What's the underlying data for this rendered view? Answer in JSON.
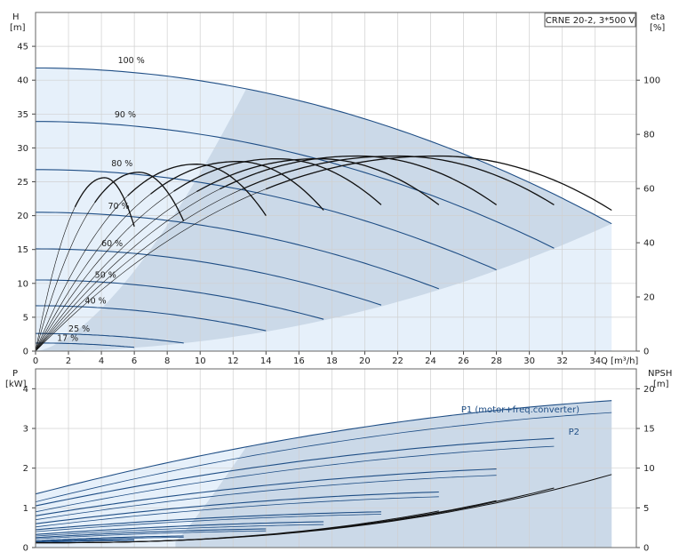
{
  "chart_data": [
    {
      "type": "line",
      "title": "CRNE 20-2, 3*500 V",
      "xlabel": "Q [m³/h]",
      "ylabel": "H",
      "ylabel_unit": "[m]",
      "y2label": "eta",
      "y2label_unit": "[%]",
      "xlim": [
        0,
        36.5
      ],
      "ylim": [
        0,
        50
      ],
      "y2lim": [
        0,
        125
      ],
      "xticks": [
        0,
        2,
        4,
        6,
        8,
        10,
        12,
        14,
        16,
        18,
        20,
        22,
        24,
        26,
        28,
        30,
        32,
        34
      ],
      "yticks": [
        0,
        5,
        10,
        15,
        20,
        25,
        30,
        35,
        40,
        45
      ],
      "y2ticks": [
        0,
        20,
        40,
        60,
        80,
        100
      ],
      "grid": true,
      "qh_curves": [
        {
          "label": "100 %",
          "h0": 41.8,
          "qmax": 35.0,
          "hend": 18.8,
          "label_q": 5.0,
          "label_h": 42.5
        },
        {
          "label": "90 %",
          "h0": 33.9,
          "qmax": 31.5,
          "hend": 15.2,
          "label_q": 4.8,
          "label_h": 34.5
        },
        {
          "label": "80 %",
          "h0": 26.8,
          "qmax": 28.0,
          "hend": 12.0,
          "label_q": 4.6,
          "label_h": 27.3
        },
        {
          "label": "70 %",
          "h0": 20.5,
          "qmax": 24.5,
          "hend": 9.2,
          "label_q": 4.4,
          "label_h": 21.0
        },
        {
          "label": "60 %",
          "h0": 15.1,
          "qmax": 21.0,
          "hend": 6.8,
          "label_q": 4.0,
          "label_h": 15.5
        },
        {
          "label": "50 %",
          "h0": 10.5,
          "qmax": 17.5,
          "hend": 4.7,
          "label_q": 3.6,
          "label_h": 10.8
        },
        {
          "label": "40 %",
          "h0": 6.7,
          "qmax": 14.0,
          "hend": 3.0,
          "label_q": 3.0,
          "label_h": 7.0
        },
        {
          "label": "25 %",
          "h0": 2.6,
          "qmax": 9.0,
          "hend": 1.2,
          "label_q": 2.0,
          "label_h": 2.9
        },
        {
          "label": "17 %",
          "h0": 1.2,
          "qmax": 6.0,
          "hend": 0.55,
          "label_q": 1.3,
          "label_h": 1.5
        }
      ],
      "eta_curves": [
        {
          "qmax": 35.0,
          "peak_q": 24.5,
          "peak": 72,
          "end": 52
        },
        {
          "qmax": 31.5,
          "peak_q": 22.0,
          "peak": 72,
          "end": 54
        },
        {
          "qmax": 28.0,
          "peak_q": 19.6,
          "peak": 72,
          "end": 54
        },
        {
          "qmax": 24.5,
          "peak_q": 17.2,
          "peak": 71,
          "end": 54
        },
        {
          "qmax": 21.0,
          "peak_q": 14.7,
          "peak": 71,
          "end": 54
        },
        {
          "qmax": 17.5,
          "peak_q": 12.3,
          "peak": 70,
          "end": 52
        },
        {
          "qmax": 14.0,
          "peak_q": 9.8,
          "peak": 69,
          "end": 50
        },
        {
          "qmax": 9.0,
          "peak_q": 6.3,
          "peak": 66,
          "end": 48
        },
        {
          "qmax": 6.0,
          "peak_q": 4.2,
          "peak": 64,
          "end": 46
        }
      ]
    },
    {
      "type": "line",
      "xlabel": "",
      "ylabel": "P",
      "ylabel_unit": "[kW]",
      "y2label": "NPSH",
      "y2label_unit": "[m]",
      "xlim": [
        0,
        36.5
      ],
      "ylim": [
        0,
        4.5
      ],
      "y2lim": [
        0,
        22.5
      ],
      "yticks": [
        0,
        1,
        2,
        3,
        4
      ],
      "y2ticks": [
        0,
        5,
        10,
        15,
        20
      ],
      "grid": true,
      "annotations": [
        "P1 (motor+freq.converter)",
        "P2"
      ],
      "power_curves": [
        {
          "qmax": 35.0,
          "p1_start": 1.35,
          "p1_end": 3.7,
          "p2_start": 1.15,
          "p2_end": 3.4
        },
        {
          "qmax": 31.5,
          "p1_start": 1.05,
          "p1_end": 2.75,
          "p2_start": 0.9,
          "p2_end": 2.55
        },
        {
          "qmax": 28.0,
          "p1_start": 0.8,
          "p1_end": 1.98,
          "p2_start": 0.7,
          "p2_end": 1.82
        },
        {
          "qmax": 24.5,
          "p1_start": 0.6,
          "p1_end": 1.4,
          "p2_start": 0.52,
          "p2_end": 1.28
        },
        {
          "qmax": 21.0,
          "p1_start": 0.45,
          "p1_end": 0.9,
          "p2_start": 0.4,
          "p2_end": 0.84
        },
        {
          "qmax": 17.5,
          "p1_start": 0.33,
          "p1_end": 0.65,
          "p2_start": 0.29,
          "p2_end": 0.58
        },
        {
          "qmax": 14.0,
          "p1_start": 0.25,
          "p1_end": 0.47,
          "p2_start": 0.22,
          "p2_end": 0.42
        },
        {
          "qmax": 9.0,
          "p1_start": 0.17,
          "p1_end": 0.29,
          "p2_start": 0.15,
          "p2_end": 0.26
        },
        {
          "qmax": 6.0,
          "p1_start": 0.14,
          "p1_end": 0.2,
          "p2_start": 0.12,
          "p2_end": 0.18
        }
      ],
      "npsh_curves": [
        {
          "qmax": 35.0,
          "end": 9.2
        },
        {
          "qmax": 31.5,
          "end": 7.5
        },
        {
          "qmax": 28.0,
          "end": 5.9
        },
        {
          "qmax": 24.5,
          "end": 4.6
        }
      ]
    }
  ],
  "colors": {
    "curve": "#1f4e85",
    "region_main": "#cbd9e8",
    "region_light": "#e6f0fa",
    "grid": "#d0d0d0",
    "black": "#111111"
  }
}
